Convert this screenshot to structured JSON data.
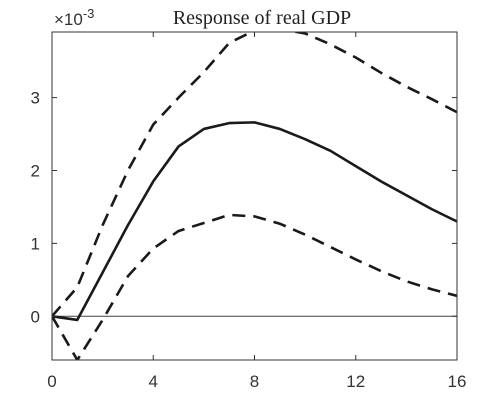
{
  "chart_data": {
    "type": "line",
    "title": "Response of real GDP",
    "xlabel": "",
    "ylabel": "",
    "y_scale_label": "×10",
    "y_scale_exponent": "-3",
    "xlim": [
      0,
      16
    ],
    "ylim": [
      -0.6,
      3.9
    ],
    "x_ticks": [
      0,
      4,
      8,
      12,
      16
    ],
    "y_ticks": [
      0,
      1,
      2,
      3
    ],
    "grid": false,
    "zero_line": true,
    "series": [
      {
        "style": "solid",
        "x": [
          0,
          1,
          2,
          3,
          4,
          5,
          6,
          7,
          8,
          9,
          10,
          11,
          12,
          13,
          14,
          15,
          16
        ],
        "values": [
          0,
          -0.05,
          0.6,
          1.25,
          1.85,
          2.33,
          2.57,
          2.65,
          2.66,
          2.57,
          2.43,
          2.27,
          2.06,
          1.85,
          1.66,
          1.47,
          1.3
        ]
      },
      {
        "style": "dashed",
        "x": [
          0,
          1,
          2,
          3,
          4,
          5,
          6,
          7,
          8,
          9,
          10,
          11,
          12,
          13,
          14,
          15,
          16
        ],
        "values": [
          0,
          0.4,
          1.25,
          2.0,
          2.63,
          3.0,
          3.35,
          3.75,
          3.92,
          3.94,
          3.88,
          3.73,
          3.55,
          3.34,
          3.15,
          2.98,
          2.8
        ]
      },
      {
        "style": "dashed",
        "x": [
          0,
          1,
          2,
          3,
          4,
          5,
          6,
          7,
          8,
          9,
          10,
          11,
          12,
          13,
          14,
          15,
          16
        ],
        "values": [
          0,
          -0.6,
          -0.05,
          0.55,
          0.93,
          1.17,
          1.28,
          1.39,
          1.37,
          1.27,
          1.12,
          0.95,
          0.78,
          0.62,
          0.48,
          0.37,
          0.28
        ]
      }
    ]
  }
}
